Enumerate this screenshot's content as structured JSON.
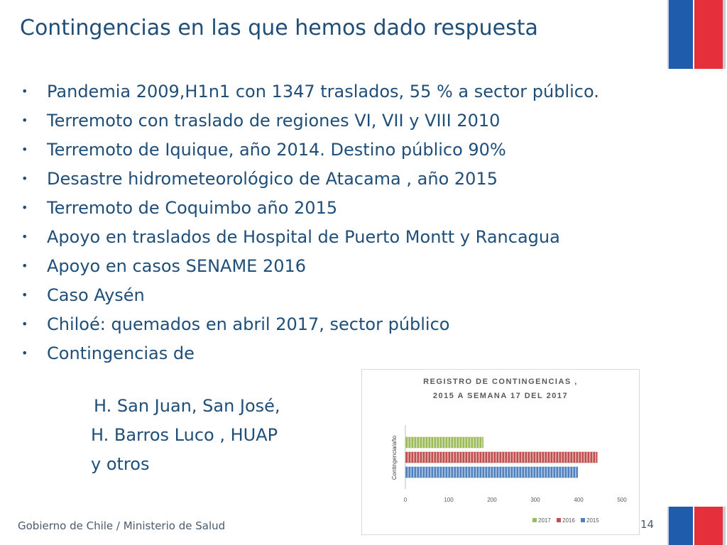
{
  "slide": {
    "title": "Contingencias en las que hemos dado respuesta",
    "bullet_glyph": "•",
    "bullets": [
      "Pandemia 2009,H1n1 con 1347 traslados, 55 % a sector público.",
      "Terremoto con traslado de regiones VI, VII y VIII 2010",
      "Terremoto de Iquique, año 2014. Destino público 90%",
      "Desastre hidrometeorológico de Atacama , año 2015",
      "Terremoto de Coquimbo año 2015",
      "Apoyo en traslados de Hospital de Puerto Montt y Rancagua",
      "Apoyo en casos SENAME 2016",
      "Caso Aysén",
      "Chiloé: quemados en abril 2017, sector público",
      "Contingencias de"
    ],
    "continuation_lines": [
      "H. San Juan, San José,",
      "H. Barros Luco , HUAP",
      "y otros"
    ],
    "footer": "Gobierno de Chile / Ministerio de Salud",
    "page_number": "14"
  },
  "colors": {
    "title_blue": "#1f4e79",
    "flag_blue": "#1f5cab",
    "flag_red": "#e5303b"
  },
  "chart_data": {
    "type": "bar",
    "orientation": "horizontal",
    "title": "REGISTRO DE CONTINGENCIAS ,",
    "subtitle": "2015 A SEMANA 17 DEL 2017",
    "ylabel": "Contingencia/año",
    "xlabel": "",
    "xlim": [
      0,
      500
    ],
    "xticks": [
      "0",
      "100",
      "200",
      "300",
      "400",
      "500"
    ],
    "grid": false,
    "legend_position": "bottom",
    "series": [
      {
        "name": "2017",
        "value": 180,
        "color": "#9bbb59"
      },
      {
        "name": "2016",
        "value": 443,
        "color": "#c0504d"
      },
      {
        "name": "2015",
        "value": 398,
        "color": "#4f81bd"
      }
    ]
  }
}
